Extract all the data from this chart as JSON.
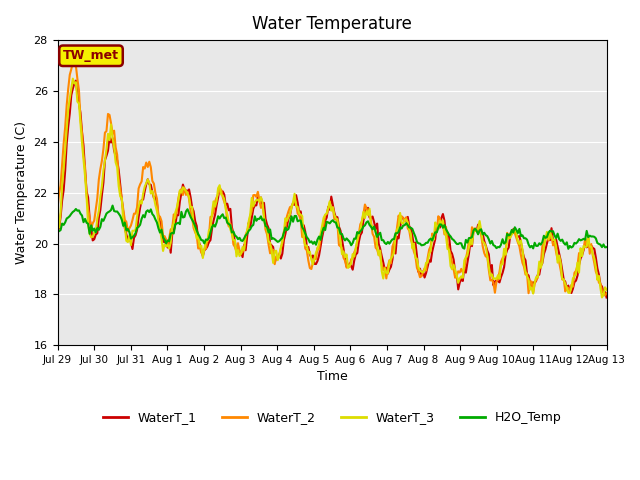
{
  "title": "Water Temperature",
  "ylabel": "Water Temperature (C)",
  "xlabel": "Time",
  "ylim": [
    16,
    28
  ],
  "yticks": [
    16,
    18,
    20,
    22,
    24,
    26,
    28
  ],
  "bg_color": "#e8e8e8",
  "annotation_text": "TW_met",
  "annotation_bg": "#f5f000",
  "annotation_border": "#8b0000",
  "lines": {
    "WaterT_1": {
      "color": "#cc0000",
      "lw": 1.5
    },
    "WaterT_2": {
      "color": "#ff8800",
      "lw": 1.5
    },
    "WaterT_3": {
      "color": "#dddd00",
      "lw": 1.5
    },
    "H2O_Temp": {
      "color": "#00aa00",
      "lw": 1.5
    }
  },
  "x_tick_labels": [
    "Jul 29",
    "Jul 30",
    "Jul 31",
    "Aug 1",
    "Aug 2",
    "Aug 3",
    "Aug 4",
    "Aug 5",
    "Aug 6",
    "Aug 7",
    "Aug 8",
    "Aug 9",
    "Aug 10",
    "Aug 11",
    "Aug 12",
    "Aug 13"
  ],
  "n_days": 15,
  "points_per_day": 24
}
